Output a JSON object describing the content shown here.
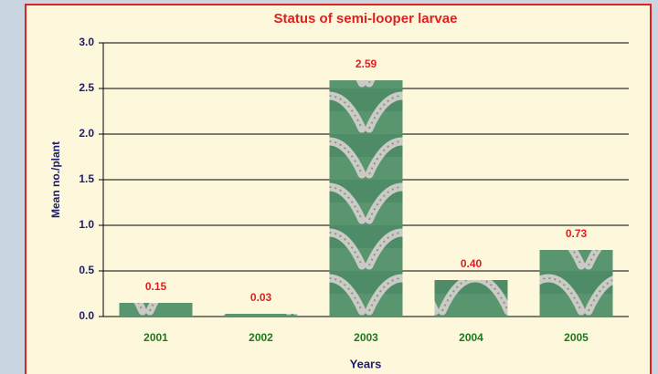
{
  "chart_data": {
    "type": "bar",
    "title": "Status of semi-looper larvae",
    "x_label": "Years",
    "y_label": "Mean no./plant",
    "categories": [
      "2001",
      "2002",
      "2003",
      "2004",
      "2005"
    ],
    "values": [
      0.15,
      0.03,
      2.59,
      0.4,
      0.73
    ],
    "value_labels": [
      "0.15",
      "0.03",
      "2.59",
      "0.40",
      "0.73"
    ],
    "ylim": [
      0,
      3
    ],
    "yticks": [
      {
        "value": 0,
        "label": "0.0"
      },
      {
        "value": 0.5,
        "label": "0.5"
      },
      {
        "value": 1,
        "label": "1.0"
      },
      {
        "value": 1.5,
        "label": "1.5"
      },
      {
        "value": 2,
        "label": "2.0"
      },
      {
        "value": 2.5,
        "label": "2.5"
      },
      {
        "value": 3,
        "label": "3.0"
      }
    ],
    "grid": true
  }
}
